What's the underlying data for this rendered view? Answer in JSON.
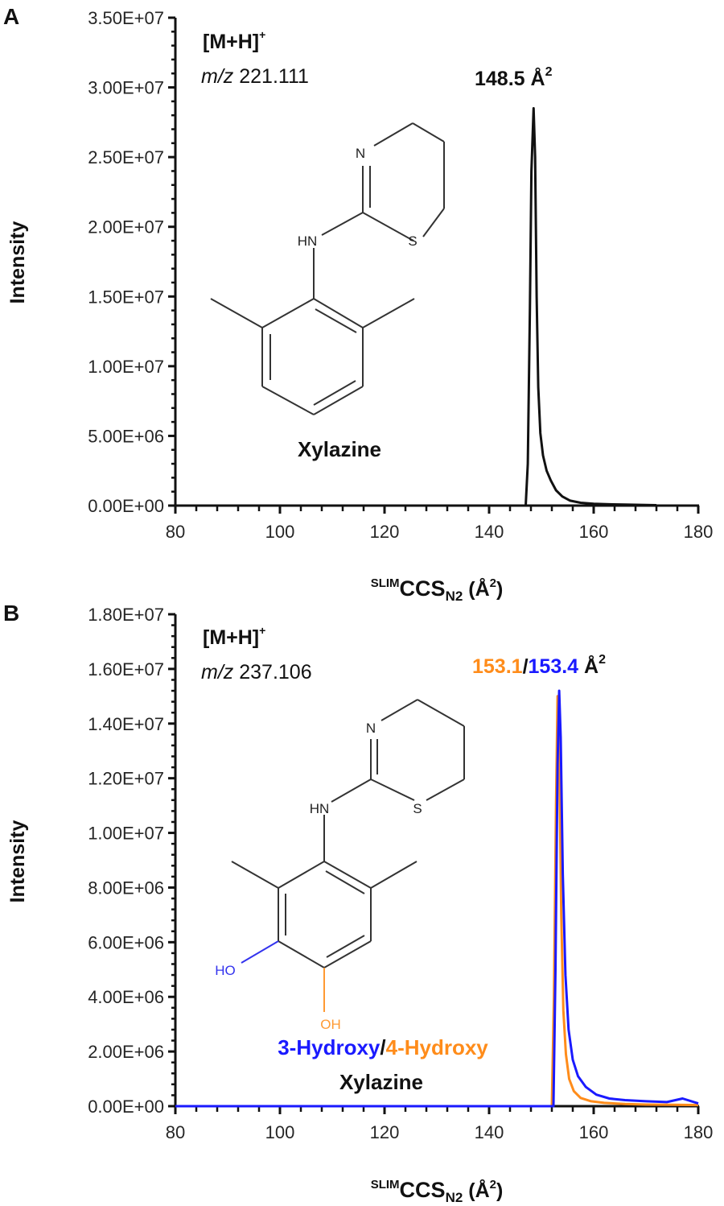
{
  "figure": {
    "panels": [
      {
        "letter": "A",
        "ion": "[M+H]",
        "ion_charge": "+",
        "mz_prefix": "m/z",
        "mz_value": "221.111",
        "ccs_annotation": [
          {
            "text": "148.5",
            "color": "#111111"
          },
          {
            "text": " Å",
            "color": "#111111"
          }
        ],
        "compound_name_lines": [
          [
            {
              "text": "Xylazine",
              "color": "#111111"
            }
          ]
        ]
      },
      {
        "letter": "B",
        "ion": "[M+H]",
        "ion_charge": "+",
        "mz_prefix": "m/z",
        "mz_value": "237.106",
        "ccs_annotation": [
          {
            "text": "153.1",
            "color": "#ff8c1a"
          },
          {
            "text": "/",
            "color": "#111111"
          },
          {
            "text": "153.4",
            "color": "#1a1aff"
          },
          {
            "text": " Å",
            "color": "#111111"
          }
        ],
        "compound_name_lines": [
          [
            {
              "text": "3-Hydroxy",
              "color": "#1a1aff"
            },
            {
              "text": "/",
              "color": "#111111"
            },
            {
              "text": "4-Hydroxy",
              "color": "#ff8c1a"
            }
          ],
          [
            {
              "text": "Xylazine",
              "color": "#111111"
            }
          ]
        ]
      }
    ],
    "atom_labels": {
      "N": "N",
      "HN": "HN",
      "S": "S",
      "HO": "HO",
      "OH": "OH"
    },
    "colors": {
      "black": "#111111",
      "orange": "#ff8c1a",
      "blue": "#1a1aff",
      "axis": "#111111"
    }
  },
  "chart_data": [
    {
      "type": "line",
      "title": "A",
      "annotation": "[M+H]+ m/z 221.111; 148.5 Å²; Xylazine",
      "xlabel": "SLIMCCS_N2 (Å²)",
      "ylabel": "Intensity",
      "xlim": [
        80,
        180
      ],
      "ylim": [
        0,
        35000000
      ],
      "xticks": [
        "80",
        "100",
        "120",
        "140",
        "160",
        "180"
      ],
      "yticks": [
        "0.00E+00",
        "5.00E+06",
        "1.00E+07",
        "1.50E+07",
        "2.00E+07",
        "2.50E+07",
        "3.00E+07",
        "3.50E+07"
      ],
      "grid": false,
      "series": [
        {
          "name": "Xylazine",
          "color": "#111111",
          "x": [
            147.0,
            147.4,
            147.8,
            148.1,
            148.5,
            148.8,
            149.1,
            149.4,
            149.8,
            150.3,
            151.0,
            151.8,
            152.8,
            154.0,
            155.5,
            157.5,
            160.0,
            163.0,
            166.0,
            169.0,
            172.0
          ],
          "y": [
            0,
            3000000,
            14000000,
            24000000,
            28500000,
            25000000,
            15000000,
            8500000,
            5200000,
            3600000,
            2500000,
            1800000,
            1100000,
            650000,
            350000,
            200000,
            130000,
            90000,
            70000,
            50000,
            30000
          ]
        }
      ]
    },
    {
      "type": "line",
      "title": "B",
      "annotation": "[M+H]+ m/z 237.106; 153.1/153.4 Å²; 3-Hydroxy/4-Hydroxy Xylazine",
      "xlabel": "SLIMCCS_N2 (Å²)",
      "ylabel": "Intensity",
      "xlim": [
        80,
        180
      ],
      "ylim": [
        0,
        18000000
      ],
      "xticks": [
        "80",
        "100",
        "120",
        "140",
        "160",
        "180"
      ],
      "yticks": [
        "0.00E+00",
        "2.00E+06",
        "4.00E+06",
        "6.00E+06",
        "8.00E+06",
        "1.00E+07",
        "1.20E+07",
        "1.40E+07",
        "1.60E+07",
        "1.80E+07"
      ],
      "grid": false,
      "series": [
        {
          "name": "4-Hydroxy Xylazine",
          "color": "#ff8c1a",
          "x": [
            80,
            152.0,
            152.4,
            152.8,
            153.1,
            153.4,
            153.8,
            154.2,
            154.7,
            155.3,
            156.2,
            157.5,
            159.5,
            162.0,
            166.0,
            170.0,
            175.0,
            180.0
          ],
          "y": [
            0,
            0,
            4000000,
            11000000,
            15000000,
            13000000,
            7000000,
            3500000,
            1900000,
            1000000,
            550000,
            300000,
            180000,
            120000,
            80000,
            60000,
            50000,
            40000
          ]
        },
        {
          "name": "3-Hydroxy Xylazine",
          "color": "#1a1aff",
          "x": [
            80,
            152.3,
            152.7,
            153.1,
            153.4,
            153.7,
            154.1,
            154.6,
            155.2,
            156.0,
            157.0,
            158.5,
            160.5,
            163.0,
            166.0,
            170.0,
            174.0,
            177.0,
            180.0
          ],
          "y": [
            0,
            0,
            5000000,
            12500000,
            15200000,
            13500000,
            8500000,
            4800000,
            2800000,
            1700000,
            1100000,
            700000,
            420000,
            280000,
            220000,
            180000,
            150000,
            280000,
            100000
          ]
        }
      ]
    }
  ]
}
